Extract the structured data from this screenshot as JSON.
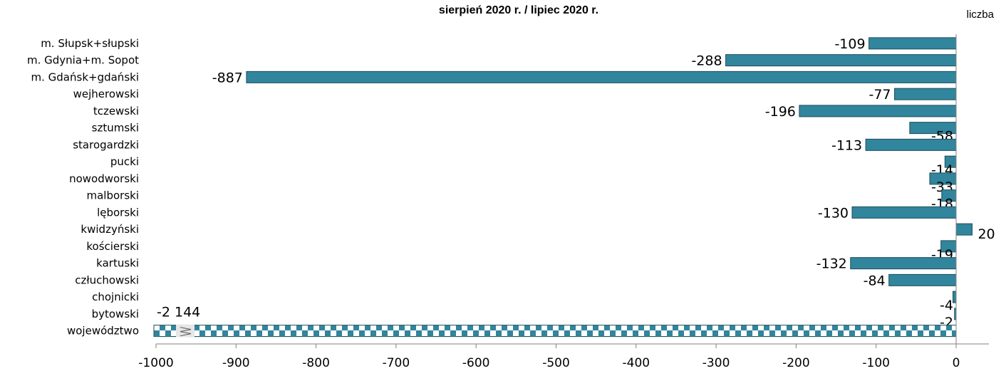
{
  "chart_data": {
    "type": "bar",
    "orientation": "horizontal",
    "title": "sierpień 2020 r. / lipiec 2020 r.",
    "unit_label": "liczba",
    "categories": [
      "m. Słupsk+słupski",
      "m. Gdynia+m. Sopot",
      "m. Gdańsk+gdański",
      "wejherowski",
      "tczewski",
      "sztumski",
      "starogardzki",
      "pucki",
      "nowodworski",
      "malborski",
      "lęborski",
      "kwidzyński",
      "kościerski",
      "kartuski",
      "człuchowski",
      "chojnicki",
      "bytowski",
      "województwo"
    ],
    "values": [
      -109,
      -288,
      -887,
      -77,
      -196,
      -58,
      -113,
      -14,
      -33,
      -18,
      -130,
      20,
      -19,
      -132,
      -84,
      -4,
      -2,
      -2144
    ],
    "value_labels": [
      "-109",
      "-288",
      "-887",
      "-77",
      "-196",
      "-58",
      "-113",
      "-14",
      "-33",
      "-18",
      "-130",
      "20",
      "-19",
      "-132",
      "-84",
      "-4",
      "-2",
      "-2 144"
    ],
    "xlim": [
      -1000,
      0
    ],
    "xticks": [
      "-1000",
      "-900",
      "-800",
      "-700",
      "-600",
      "-500",
      "-400",
      "-300",
      "-200",
      "-100",
      "0"
    ],
    "axis_break_on_last_bar": true,
    "bar_color": "#31859C",
    "bar_edge_color": "#1F4E5C",
    "legend": "none",
    "grid": false
  }
}
